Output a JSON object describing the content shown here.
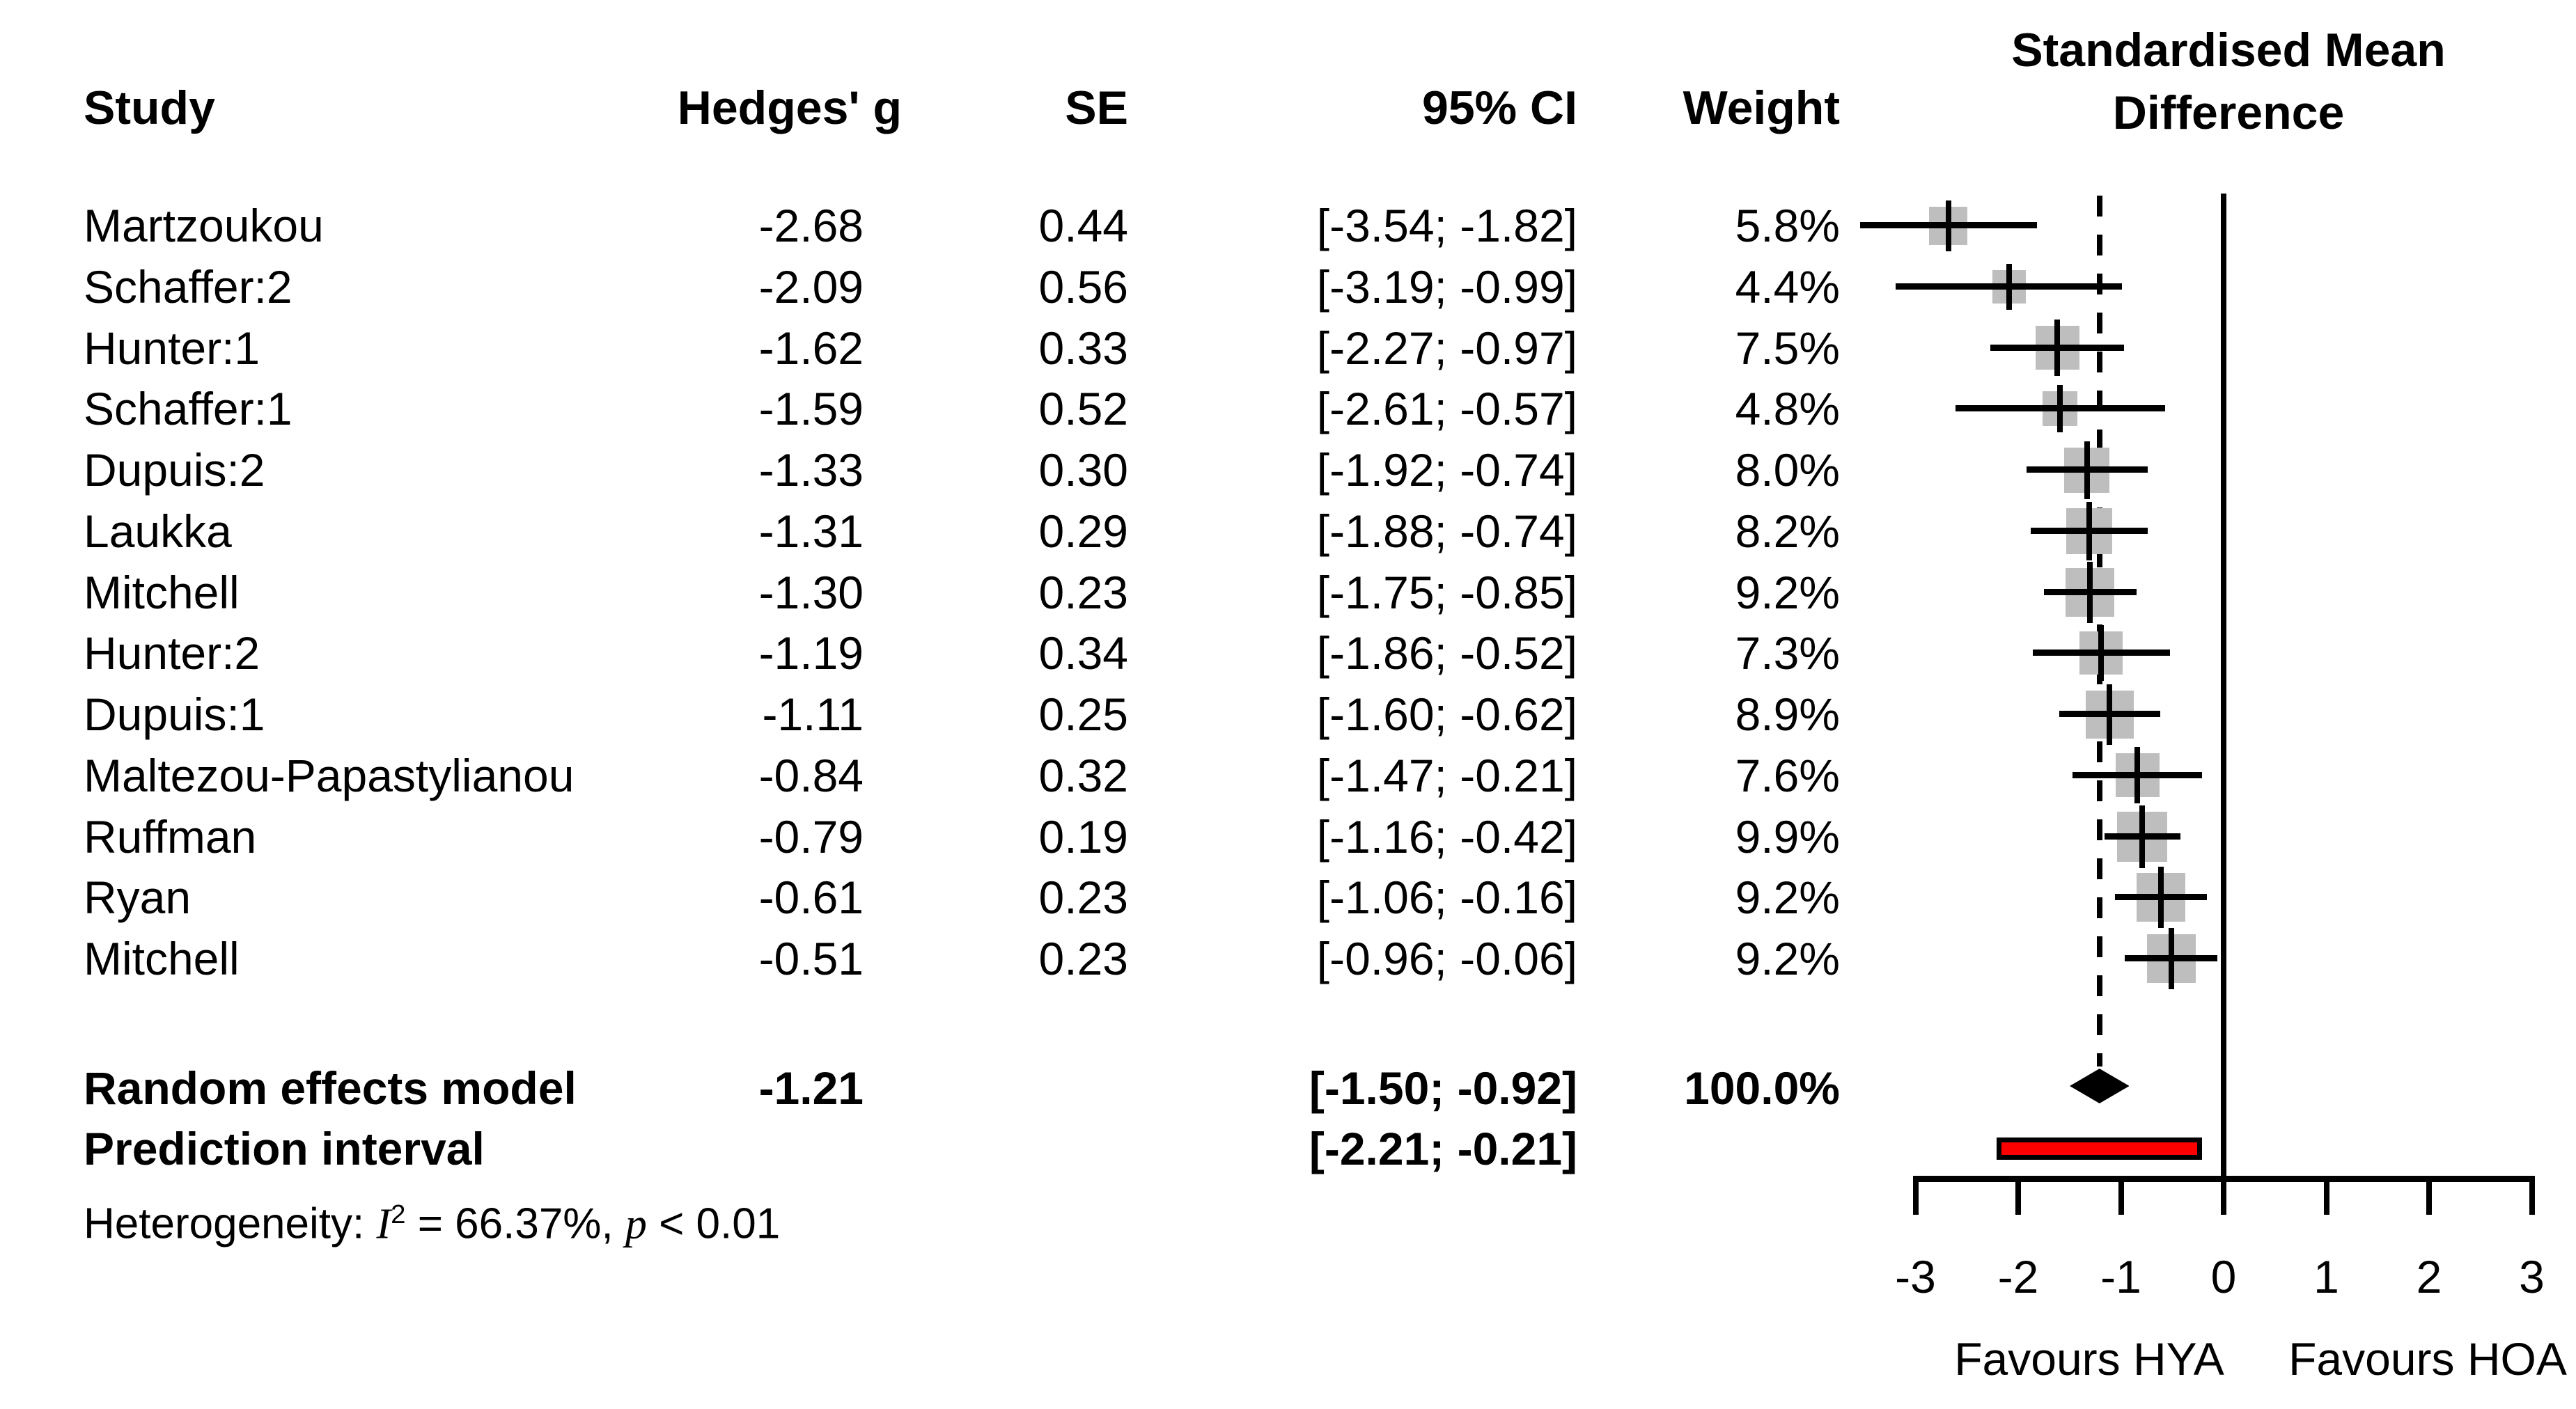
{
  "title": {
    "line1": "Standardised Mean",
    "line2": "Difference"
  },
  "columns": {
    "study": "Study",
    "hedges_g": "Hedges' g",
    "se": "SE",
    "ci": "95% CI",
    "weight": "Weight"
  },
  "summary_row": {
    "label": "Random effects model",
    "g_label": "-1.21",
    "ci_label": "[-1.50; -0.92]",
    "weight_label": "100.0%"
  },
  "prediction_row": {
    "label": "Prediction interval",
    "ci_label": "[-2.21; -0.21]"
  },
  "heterogeneity": {
    "prefix": "Heterogeneity: ",
    "stat": "I",
    "sup": "2",
    "mid": " = 66.37%, ",
    "p": "p",
    "tail": " < 0.01"
  },
  "chart_data": {
    "type": "forest",
    "xlabel": "Standardised Mean Difference",
    "xlim": [
      -3,
      3
    ],
    "axis_ticks": [
      {
        "value": -3,
        "label": "-3"
      },
      {
        "value": -2,
        "label": "-2"
      },
      {
        "value": -1,
        "label": "-1"
      },
      {
        "value": 0,
        "label": "0"
      },
      {
        "value": 1,
        "label": "1"
      },
      {
        "value": 2,
        "label": "2"
      },
      {
        "value": 3,
        "label": "3"
      }
    ],
    "favours_left": "Favours HYA",
    "favours_right": "Favours HOA",
    "zero_line": 0,
    "pooled_line": -1.21,
    "square_color": "#bebebe",
    "prediction_color": "#ff0000",
    "studies": [
      {
        "study": "Martzoukou",
        "g": -2.68,
        "g_label": "-2.68",
        "se_label": "0.44",
        "lo": -3.54,
        "hi": -1.82,
        "ci_label": "[-3.54; -1.82]",
        "weight": 5.8,
        "weight_label": "5.8%"
      },
      {
        "study": "Schaffer:2",
        "g": -2.09,
        "g_label": "-2.09",
        "se_label": "0.56",
        "lo": -3.19,
        "hi": -0.99,
        "ci_label": "[-3.19; -0.99]",
        "weight": 4.4,
        "weight_label": "4.4%"
      },
      {
        "study": "Hunter:1",
        "g": -1.62,
        "g_label": "-1.62",
        "se_label": "0.33",
        "lo": -2.27,
        "hi": -0.97,
        "ci_label": "[-2.27; -0.97]",
        "weight": 7.5,
        "weight_label": "7.5%"
      },
      {
        "study": "Schaffer:1",
        "g": -1.59,
        "g_label": "-1.59",
        "se_label": "0.52",
        "lo": -2.61,
        "hi": -0.57,
        "ci_label": "[-2.61; -0.57]",
        "weight": 4.8,
        "weight_label": "4.8%"
      },
      {
        "study": "Dupuis:2",
        "g": -1.33,
        "g_label": "-1.33",
        "se_label": "0.30",
        "lo": -1.92,
        "hi": -0.74,
        "ci_label": "[-1.92; -0.74]",
        "weight": 8.0,
        "weight_label": "8.0%"
      },
      {
        "study": "Laukka",
        "g": -1.31,
        "g_label": "-1.31",
        "se_label": "0.29",
        "lo": -1.88,
        "hi": -0.74,
        "ci_label": "[-1.88; -0.74]",
        "weight": 8.2,
        "weight_label": "8.2%"
      },
      {
        "study": "Mitchell",
        "g": -1.3,
        "g_label": "-1.30",
        "se_label": "0.23",
        "lo": -1.75,
        "hi": -0.85,
        "ci_label": "[-1.75; -0.85]",
        "weight": 9.2,
        "weight_label": "9.2%"
      },
      {
        "study": "Hunter:2",
        "g": -1.19,
        "g_label": "-1.19",
        "se_label": "0.34",
        "lo": -1.86,
        "hi": -0.52,
        "ci_label": "[-1.86; -0.52]",
        "weight": 7.3,
        "weight_label": "7.3%"
      },
      {
        "study": "Dupuis:1",
        "g": -1.11,
        "g_label": "-1.11",
        "se_label": "0.25",
        "lo": -1.6,
        "hi": -0.62,
        "ci_label": "[-1.60; -0.62]",
        "weight": 8.9,
        "weight_label": "8.9%"
      },
      {
        "study": "Maltezou-Papastylianou",
        "g": -0.84,
        "g_label": "-0.84",
        "se_label": "0.32",
        "lo": -1.47,
        "hi": -0.21,
        "ci_label": "[-1.47; -0.21]",
        "weight": 7.6,
        "weight_label": "7.6%"
      },
      {
        "study": "Ruffman",
        "g": -0.79,
        "g_label": "-0.79",
        "se_label": "0.19",
        "lo": -1.16,
        "hi": -0.42,
        "ci_label": "[-1.16; -0.42]",
        "weight": 9.9,
        "weight_label": "9.9%"
      },
      {
        "study": "Ryan",
        "g": -0.61,
        "g_label": "-0.61",
        "se_label": "0.23",
        "lo": -1.06,
        "hi": -0.16,
        "ci_label": "[-1.06; -0.16]",
        "weight": 9.2,
        "weight_label": "9.2%"
      },
      {
        "study": "Mitchell",
        "g": -0.51,
        "g_label": "-0.51",
        "se_label": "0.23",
        "lo": -0.96,
        "hi": -0.06,
        "ci_label": "[-0.96; -0.06]",
        "weight": 9.2,
        "weight_label": "9.2%"
      }
    ],
    "summary": {
      "g": -1.21,
      "lo": -1.5,
      "hi": -0.92
    },
    "prediction": {
      "lo": -2.21,
      "hi": -0.21
    }
  }
}
